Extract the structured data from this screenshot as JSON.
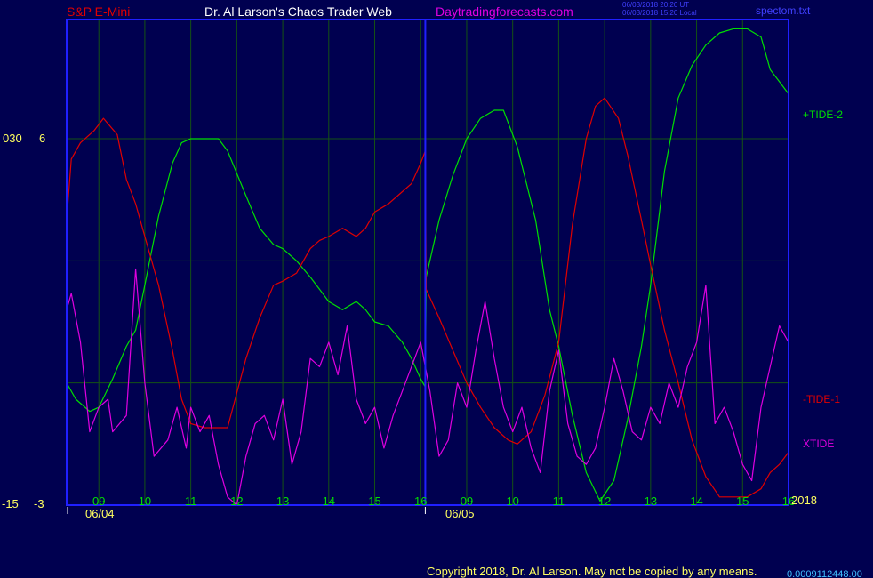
{
  "header": {
    "symbol": "S&P E-Mini",
    "site_name": "Dr. Al Larson's Chaos Trader Web",
    "site_url": "Daytradingforecasts.com",
    "timestamp_ut": "06/03/2018 20:20 UT",
    "timestamp_local": "06/03/2018 15:20 Local",
    "filename": "spectom.txt"
  },
  "axis_labels": {
    "left_top_a": "030",
    "left_top_b": "6",
    "left_bottom_a": "-15",
    "left_bottom_b": "-3",
    "year": "2018"
  },
  "footer": {
    "copyright": "Copyright 2018, Dr. Al Larson. May not be copied by any means.",
    "trailing_number": "0.0009112448.00"
  },
  "colors": {
    "background": "#000050",
    "frame": "#2020ff",
    "grid": "#145214",
    "tide_plus": "#00e000",
    "tide_minus": "#e00000",
    "xtide": "#e000e0",
    "symbol_text": "#e00000",
    "site_text": "#ffffff",
    "url_text": "#e000e0",
    "info_text": "#4040ff",
    "tick_text": "#00e000",
    "date_text": "#ffff60"
  },
  "chart_data": {
    "type": "line",
    "x_unit": "hour of session (day 0 = 06/04, day 1 = 06/05)",
    "xlim": [
      8.3,
      24.0
    ],
    "day_starts": [
      8.3,
      16.1
    ],
    "date_labels": [
      "06/04",
      "06/05"
    ],
    "hour_ticks": [
      {
        "x": 9,
        "label": "09"
      },
      {
        "x": 10,
        "label": "10"
      },
      {
        "x": 11,
        "label": "11"
      },
      {
        "x": 12,
        "label": "12"
      },
      {
        "x": 13,
        "label": "13"
      },
      {
        "x": 14,
        "label": "14"
      },
      {
        "x": 15,
        "label": "15"
      },
      {
        "x": 16,
        "label": "16"
      },
      {
        "x": 17,
        "label": "09"
      },
      {
        "x": 18,
        "label": "10"
      },
      {
        "x": 19,
        "label": "11"
      },
      {
        "x": 20,
        "label": "12"
      },
      {
        "x": 21,
        "label": "13"
      },
      {
        "x": 22,
        "label": "14"
      },
      {
        "x": 23,
        "label": "15"
      },
      {
        "x": 24,
        "label": "16"
      }
    ],
    "ylim_tides": [
      -3,
      6
    ],
    "ylim_xtide": [
      -15,
      30
    ],
    "grid": true,
    "series": [
      {
        "name": "+TIDE-2",
        "color": "#00e000",
        "y_scale": "tides",
        "points": [
          [
            8.3,
            0.0
          ],
          [
            8.5,
            -0.4
          ],
          [
            8.8,
            -0.7
          ],
          [
            9.0,
            -0.6
          ],
          [
            9.3,
            0.1
          ],
          [
            9.6,
            0.9
          ],
          [
            9.8,
            1.3
          ],
          [
            10.0,
            2.4
          ],
          [
            10.3,
            4.1
          ],
          [
            10.6,
            5.4
          ],
          [
            10.8,
            5.9
          ],
          [
            11.0,
            6.0
          ],
          [
            11.3,
            6.0
          ],
          [
            11.6,
            6.0
          ],
          [
            11.8,
            5.7
          ],
          [
            12.2,
            4.6
          ],
          [
            12.5,
            3.8
          ],
          [
            12.8,
            3.4
          ],
          [
            13.0,
            3.3
          ],
          [
            13.3,
            3.0
          ],
          [
            13.6,
            2.6
          ],
          [
            13.8,
            2.3
          ],
          [
            14.0,
            2.0
          ],
          [
            14.3,
            1.8
          ],
          [
            14.6,
            2.0
          ],
          [
            14.8,
            1.8
          ],
          [
            15.0,
            1.5
          ],
          [
            15.3,
            1.4
          ],
          [
            15.6,
            1.0
          ],
          [
            15.8,
            0.6
          ],
          [
            16.0,
            0.1
          ],
          [
            16.1,
            -0.1
          ],
          [
            16.12,
            2.6
          ],
          [
            16.4,
            4.0
          ],
          [
            16.7,
            5.1
          ],
          [
            17.0,
            6.0
          ],
          [
            17.3,
            6.5
          ],
          [
            17.6,
            6.7
          ],
          [
            17.8,
            6.7
          ],
          [
            18.1,
            5.8
          ],
          [
            18.5,
            4.0
          ],
          [
            18.8,
            1.8
          ],
          [
            19.0,
            0.9
          ],
          [
            19.3,
            -0.8
          ],
          [
            19.6,
            -2.2
          ],
          [
            19.9,
            -2.9
          ],
          [
            20.2,
            -2.4
          ],
          [
            20.5,
            -0.9
          ],
          [
            20.8,
            0.9
          ],
          [
            21.0,
            2.4
          ],
          [
            21.3,
            5.2
          ],
          [
            21.6,
            7.0
          ],
          [
            21.9,
            7.8
          ],
          [
            22.2,
            8.3
          ],
          [
            22.5,
            8.6
          ],
          [
            22.8,
            8.7
          ],
          [
            23.1,
            8.7
          ],
          [
            23.4,
            8.5
          ],
          [
            23.6,
            7.7
          ],
          [
            23.8,
            7.4
          ],
          [
            24.0,
            7.1
          ]
        ]
      },
      {
        "name": "-TIDE-1",
        "color": "#e00000",
        "y_scale": "tides",
        "points": [
          [
            8.3,
            4.0
          ],
          [
            8.4,
            5.5
          ],
          [
            8.6,
            5.9
          ],
          [
            8.9,
            6.2
          ],
          [
            9.1,
            6.5
          ],
          [
            9.4,
            6.1
          ],
          [
            9.6,
            5.0
          ],
          [
            9.8,
            4.4
          ],
          [
            10.0,
            3.6
          ],
          [
            10.3,
            2.4
          ],
          [
            10.6,
            0.8
          ],
          [
            10.8,
            -0.4
          ],
          [
            11.0,
            -1.0
          ],
          [
            11.3,
            -1.1
          ],
          [
            11.6,
            -1.1
          ],
          [
            11.8,
            -1.1
          ],
          [
            12.2,
            0.6
          ],
          [
            12.5,
            1.6
          ],
          [
            12.8,
            2.4
          ],
          [
            13.0,
            2.5
          ],
          [
            13.3,
            2.7
          ],
          [
            13.6,
            3.3
          ],
          [
            13.8,
            3.5
          ],
          [
            14.0,
            3.6
          ],
          [
            14.3,
            3.8
          ],
          [
            14.6,
            3.6
          ],
          [
            14.8,
            3.8
          ],
          [
            15.0,
            4.2
          ],
          [
            15.3,
            4.4
          ],
          [
            15.6,
            4.7
          ],
          [
            15.8,
            4.9
          ],
          [
            16.0,
            5.4
          ],
          [
            16.1,
            5.7
          ],
          [
            16.12,
            2.3
          ],
          [
            16.4,
            1.6
          ],
          [
            16.7,
            0.8
          ],
          [
            17.0,
            0.0
          ],
          [
            17.3,
            -0.6
          ],
          [
            17.6,
            -1.1
          ],
          [
            17.9,
            -1.4
          ],
          [
            18.1,
            -1.5
          ],
          [
            18.4,
            -1.2
          ],
          [
            18.7,
            -0.3
          ],
          [
            19.0,
            1.0
          ],
          [
            19.3,
            3.9
          ],
          [
            19.6,
            6.0
          ],
          [
            19.8,
            6.8
          ],
          [
            20.0,
            7.0
          ],
          [
            20.3,
            6.5
          ],
          [
            20.5,
            5.6
          ],
          [
            20.8,
            4.0
          ],
          [
            21.0,
            2.9
          ],
          [
            21.3,
            1.3
          ],
          [
            21.6,
            0.0
          ],
          [
            21.9,
            -1.4
          ],
          [
            22.2,
            -2.3
          ],
          [
            22.5,
            -2.8
          ],
          [
            22.8,
            -2.8
          ],
          [
            23.1,
            -2.8
          ],
          [
            23.4,
            -2.6
          ],
          [
            23.6,
            -2.2
          ],
          [
            23.8,
            -2.0
          ],
          [
            24.0,
            -1.7
          ]
        ]
      },
      {
        "name": "XTIDE",
        "color": "#e000e0",
        "y_scale": "xtide",
        "points": [
          [
            8.3,
            9
          ],
          [
            8.4,
            11
          ],
          [
            8.6,
            5
          ],
          [
            8.8,
            -6
          ],
          [
            9.0,
            -3
          ],
          [
            9.2,
            -2
          ],
          [
            9.3,
            -6
          ],
          [
            9.6,
            -4
          ],
          [
            9.8,
            14
          ],
          [
            10.0,
            0
          ],
          [
            10.2,
            -9
          ],
          [
            10.5,
            -7
          ],
          [
            10.7,
            -3
          ],
          [
            10.9,
            -8
          ],
          [
            11.0,
            -3
          ],
          [
            11.2,
            -6
          ],
          [
            11.4,
            -4
          ],
          [
            11.6,
            -10
          ],
          [
            11.8,
            -14
          ],
          [
            12.0,
            -15
          ],
          [
            12.2,
            -9
          ],
          [
            12.4,
            -5
          ],
          [
            12.6,
            -4
          ],
          [
            12.8,
            -7
          ],
          [
            13.0,
            -2
          ],
          [
            13.2,
            -10
          ],
          [
            13.4,
            -6
          ],
          [
            13.6,
            3
          ],
          [
            13.8,
            2
          ],
          [
            14.0,
            5
          ],
          [
            14.2,
            1
          ],
          [
            14.4,
            7
          ],
          [
            14.6,
            -2
          ],
          [
            14.8,
            -5
          ],
          [
            15.0,
            -3
          ],
          [
            15.2,
            -8
          ],
          [
            15.4,
            -4
          ],
          [
            15.6,
            -1
          ],
          [
            15.8,
            2
          ],
          [
            16.0,
            5
          ],
          [
            16.2,
            -1
          ],
          [
            16.4,
            -9
          ],
          [
            16.6,
            -7
          ],
          [
            16.8,
            0
          ],
          [
            17.0,
            -3
          ],
          [
            17.2,
            4
          ],
          [
            17.4,
            10
          ],
          [
            17.6,
            3
          ],
          [
            17.8,
            -3
          ],
          [
            18.0,
            -6
          ],
          [
            18.2,
            -3
          ],
          [
            18.4,
            -8
          ],
          [
            18.6,
            -11
          ],
          [
            18.8,
            -1
          ],
          [
            19.0,
            4
          ],
          [
            19.2,
            -5
          ],
          [
            19.4,
            -9
          ],
          [
            19.6,
            -10
          ],
          [
            19.8,
            -8
          ],
          [
            20.0,
            -3
          ],
          [
            20.2,
            3
          ],
          [
            20.4,
            -1
          ],
          [
            20.6,
            -6
          ],
          [
            20.8,
            -7
          ],
          [
            21.0,
            -3
          ],
          [
            21.2,
            -5
          ],
          [
            21.4,
            0
          ],
          [
            21.6,
            -3
          ],
          [
            21.8,
            2
          ],
          [
            22.0,
            5
          ],
          [
            22.2,
            12
          ],
          [
            22.4,
            -5
          ],
          [
            22.6,
            -3
          ],
          [
            22.8,
            -6
          ],
          [
            23.0,
            -10
          ],
          [
            23.2,
            -12
          ],
          [
            23.4,
            -3
          ],
          [
            23.6,
            2
          ],
          [
            23.8,
            7
          ],
          [
            24.0,
            5
          ]
        ]
      }
    ]
  }
}
